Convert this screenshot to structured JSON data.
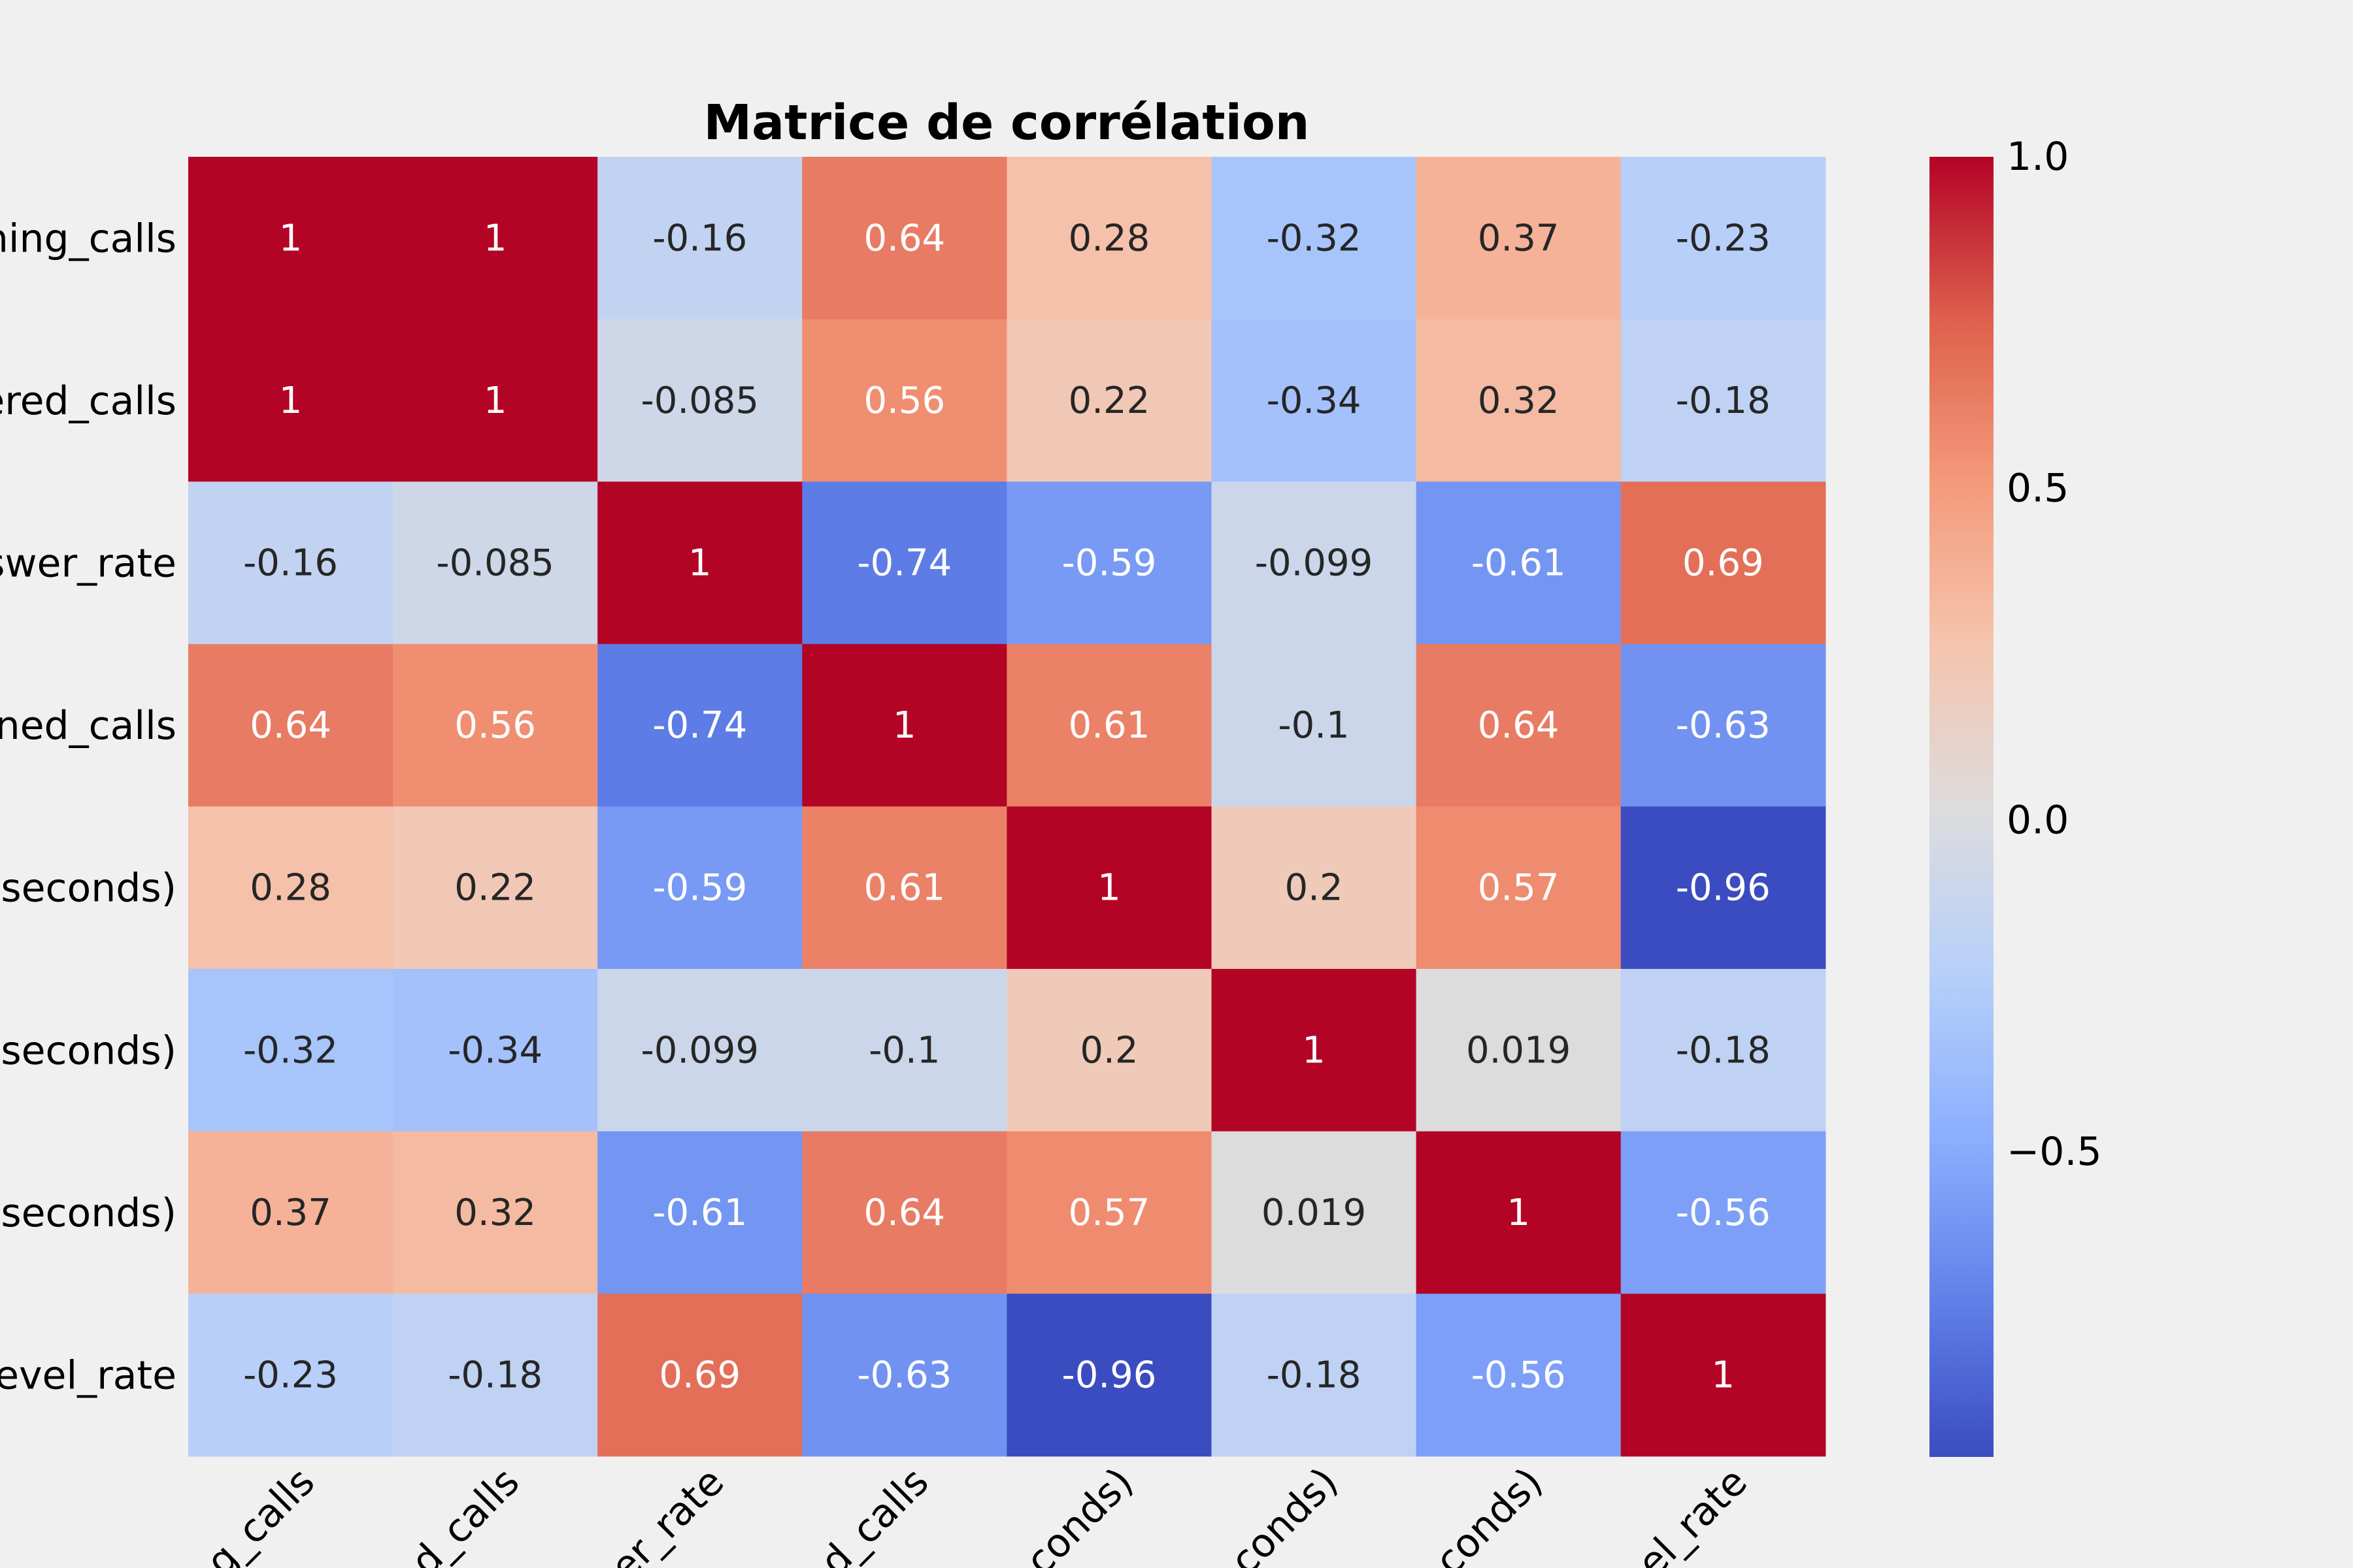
{
  "chart_data": {
    "type": "heatmap",
    "title": "Matrice de corrélation",
    "row_labels": [
      "hing_calls",
      "ered_calls",
      "swer_rate",
      "ned_calls",
      "(seconds)",
      "(seconds)",
      "(seconds)",
      "evel_rate"
    ],
    "col_labels": [
      "g_calls",
      "d_calls",
      "er_rate",
      "d_calls",
      "conds)",
      "conds)",
      "conds)",
      "el_rate"
    ],
    "values": [
      [
        1,
        1,
        -0.16,
        0.64,
        0.28,
        -0.32,
        0.37,
        -0.23
      ],
      [
        1,
        1,
        -0.085,
        0.56,
        0.22,
        -0.34,
        0.32,
        -0.18
      ],
      [
        -0.16,
        -0.085,
        1,
        -0.74,
        -0.59,
        -0.099,
        -0.61,
        0.69
      ],
      [
        0.64,
        0.56,
        -0.74,
        1,
        0.61,
        -0.1,
        0.64,
        -0.63
      ],
      [
        0.28,
        0.22,
        -0.59,
        0.61,
        1,
        0.2,
        0.57,
        -0.96
      ],
      [
        -0.32,
        -0.34,
        -0.099,
        -0.1,
        0.2,
        1,
        0.019,
        -0.18
      ],
      [
        0.37,
        0.32,
        -0.61,
        0.64,
        0.57,
        0.019,
        1,
        -0.56
      ],
      [
        -0.23,
        -0.18,
        0.69,
        -0.63,
        -0.96,
        -0.18,
        -0.56,
        1
      ]
    ],
    "annotations": [
      [
        "1",
        "1",
        "-0.16",
        "0.64",
        "0.28",
        "-0.32",
        "0.37",
        "-0.23"
      ],
      [
        "1",
        "1",
        "-0.085",
        "0.56",
        "0.22",
        "-0.34",
        "0.32",
        "-0.18"
      ],
      [
        "-0.16",
        "-0.085",
        "1",
        "-0.74",
        "-0.59",
        "-0.099",
        "-0.61",
        "0.69"
      ],
      [
        "0.64",
        "0.56",
        "-0.74",
        "1",
        "0.61",
        "-0.1",
        "0.64",
        "-0.63"
      ],
      [
        "0.28",
        "0.22",
        "-0.59",
        "0.61",
        "1",
        "0.2",
        "0.57",
        "-0.96"
      ],
      [
        "-0.32",
        "-0.34",
        "-0.099",
        "-0.1",
        "0.2",
        "1",
        "0.019",
        "-0.18"
      ],
      [
        "0.37",
        "0.32",
        "-0.61",
        "0.64",
        "0.57",
        "0.019",
        "1",
        "-0.56"
      ],
      [
        "-0.23",
        "-0.18",
        "0.69",
        "-0.63",
        "-0.96",
        "-0.18",
        "-0.56",
        "1"
      ]
    ],
    "colormap": "coolwarm",
    "colorbar": {
      "vmin": -0.96,
      "vmax": 1.0,
      "ticks": [
        1.0,
        0.5,
        0.0,
        -0.5
      ],
      "tick_labels": [
        "1.0",
        "0.5",
        "0.0",
        "−0.5"
      ]
    },
    "text_color_light": "#ffffff",
    "text_color_dark": "#262626",
    "background": "#f0f0f0"
  }
}
